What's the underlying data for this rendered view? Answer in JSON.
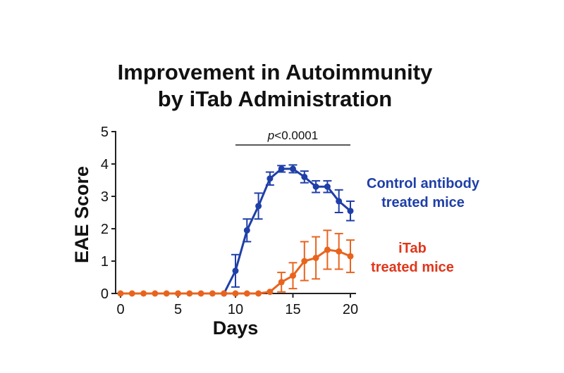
{
  "title_line1": "Improvement in Autoimmunity",
  "title_line2": "by iTab Administration",
  "significance": {
    "p_prefix": "p",
    "p_rest": "<0.0001",
    "x_start": 10,
    "x_end": 20
  },
  "series_labels": {
    "control_line1": "Control antibody",
    "control_line2": "treated mice",
    "itab_line1": "iTab",
    "itab_line2": "treated mice"
  },
  "colors": {
    "control": "#1f3fa8",
    "itab": "#e8641e",
    "itab_label": "#e0361a",
    "axis": "#222222"
  },
  "chart_data": {
    "type": "line",
    "xlabel": "Days",
    "ylabel": "EAE Score",
    "xlim": [
      0,
      20
    ],
    "ylim": [
      0,
      5
    ],
    "xticks": [
      0,
      5,
      10,
      15,
      20
    ],
    "yticks": [
      0,
      1,
      2,
      3,
      4,
      5
    ],
    "grid": false,
    "legend": "right",
    "error_bars": true,
    "series": [
      {
        "name": "Control antibody treated mice",
        "color": "#1f3fa8",
        "x": [
          9,
          10,
          11,
          12,
          13,
          14,
          15,
          16,
          17,
          18,
          19,
          20
        ],
        "y": [
          0,
          0.7,
          1.95,
          2.7,
          3.55,
          3.85,
          3.85,
          3.6,
          3.3,
          3.3,
          2.85,
          2.55
        ],
        "err": [
          0,
          0.5,
          0.35,
          0.4,
          0.2,
          0.1,
          0.12,
          0.18,
          0.18,
          0.18,
          0.35,
          0.3
        ]
      },
      {
        "name": "iTab treated mice",
        "color": "#e8641e",
        "x": [
          0,
          1,
          2,
          3,
          4,
          5,
          6,
          7,
          8,
          9,
          10,
          11,
          12,
          13,
          14,
          15,
          16,
          17,
          18,
          19,
          20
        ],
        "y": [
          0,
          0,
          0,
          0,
          0,
          0,
          0,
          0,
          0,
          0,
          0,
          0,
          0,
          0.05,
          0.35,
          0.55,
          1.0,
          1.1,
          1.35,
          1.3,
          1.15
        ],
        "err": [
          0,
          0,
          0,
          0,
          0,
          0,
          0,
          0,
          0,
          0,
          0,
          0,
          0,
          0,
          0.3,
          0.4,
          0.6,
          0.65,
          0.6,
          0.55,
          0.5
        ]
      }
    ]
  }
}
